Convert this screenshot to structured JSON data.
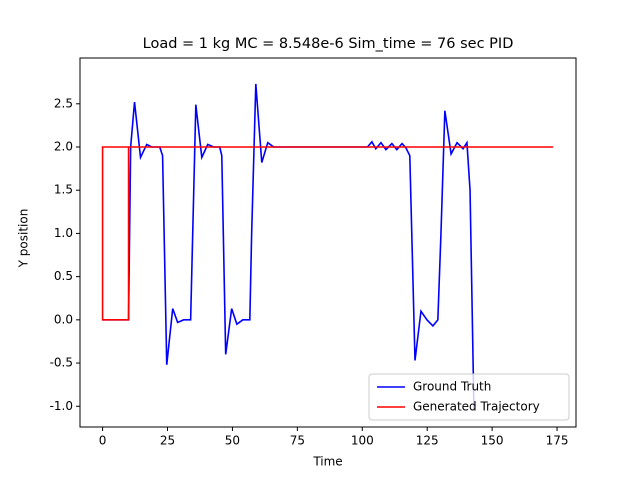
{
  "chart_data": {
    "type": "line",
    "title": "Load = 1 kg MC = 8.548e-6 Sim_time = 76 sec PID",
    "x_label": "Time",
    "y_label": "Y position",
    "legend": "lower right",
    "xlim": [
      -8.7,
      182.3
    ],
    "ylim": [
      -1.24,
      3.03
    ],
    "xticks": [
      0,
      25,
      50,
      75,
      100,
      125,
      150,
      175
    ],
    "yticks": [
      {
        "value": -1.0,
        "label": "-1.0"
      },
      {
        "value": -0.5,
        "label": "-0.5"
      },
      {
        "value": 0.0,
        "label": "0.0"
      },
      {
        "value": 0.5,
        "label": "0.5"
      },
      {
        "value": 1.0,
        "label": "1.0"
      },
      {
        "value": 1.5,
        "label": "1.5"
      },
      {
        "value": 2.0,
        "label": "2.0"
      },
      {
        "value": 2.5,
        "label": "2.5"
      }
    ],
    "series": [
      {
        "name": "Ground Truth",
        "color": "#0000ff",
        "x": [
          0,
          10,
          10.8,
          12.3,
          14.6,
          17,
          18.9,
          22,
          23.1,
          24.7,
          27,
          28.9,
          31.2,
          33.9,
          35.9,
          38.2,
          40.5,
          42.8,
          45.1,
          45.9,
          47.4,
          49.7,
          51.7,
          54,
          56.7,
          57.4,
          59,
          61.3,
          63.6,
          65.9,
          102,
          103.7,
          105.2,
          107.2,
          109.1,
          111.4,
          113.3,
          115.3,
          116.8,
          118.3,
          120.3,
          122.6,
          124.9,
          127.2,
          129.1,
          130.3,
          131.8,
          134.2,
          136.5,
          138.8,
          140.3,
          141.5,
          143
        ],
        "values": [
          0,
          0,
          2.0,
          2.52,
          1.88,
          2.03,
          2.0,
          2.0,
          1.9,
          -0.52,
          0.13,
          -0.03,
          0.0,
          0.0,
          2.49,
          1.88,
          2.03,
          2.0,
          2.0,
          1.9,
          -0.4,
          0.13,
          -0.05,
          0.0,
          0.0,
          1.0,
          2.73,
          1.82,
          2.05,
          2.0,
          2.0,
          2.06,
          1.98,
          2.05,
          1.97,
          2.04,
          1.97,
          2.04,
          1.99,
          1.9,
          -0.47,
          0.1,
          0.0,
          -0.07,
          0.0,
          1.0,
          2.42,
          1.92,
          2.05,
          1.98,
          2.05,
          1.5,
          -1.05
        ]
      },
      {
        "name": "Generated Trajectory",
        "color": "#ff0000",
        "x": [
          10,
          10,
          0,
          0,
          173.5
        ],
        "values": [
          2,
          0,
          0,
          2,
          2
        ]
      }
    ]
  }
}
